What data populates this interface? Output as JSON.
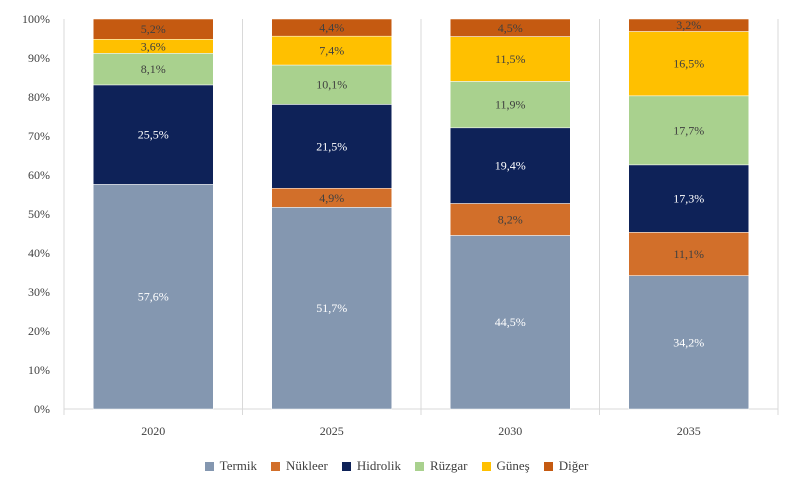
{
  "chart_data": {
    "type": "bar",
    "stacked": true,
    "categories": [
      "2020",
      "2025",
      "2030",
      "2035"
    ],
    "y_ticks": [
      "0%",
      "10%",
      "20%",
      "30%",
      "40%",
      "50%",
      "60%",
      "70%",
      "80%",
      "90%",
      "100%"
    ],
    "ylim": [
      0,
      100
    ],
    "grid": false,
    "legend_position": "bottom",
    "series": [
      {
        "name": "Termik",
        "color": "#8497b0",
        "label_color": "#ffffff",
        "values": [
          57.6,
          51.7,
          44.5,
          34.2
        ],
        "labels": [
          "57,6%",
          "51,7%",
          "44,5%",
          "34,2%"
        ]
      },
      {
        "name": "Nükleer",
        "color": "#d26f2a",
        "label_color": "#404040",
        "values": [
          0,
          4.9,
          8.2,
          11.1
        ],
        "labels": [
          "",
          "4,9%",
          "8,2%",
          "11,1%"
        ]
      },
      {
        "name": "Hidrolik",
        "color": "#0e2258",
        "label_color": "#ffffff",
        "values": [
          25.5,
          21.5,
          19.4,
          17.3
        ],
        "labels": [
          "25,5%",
          "21,5%",
          "19,4%",
          "17,3%"
        ]
      },
      {
        "name": "Rüzgar",
        "color": "#a9d18e",
        "label_color": "#404040",
        "values": [
          8.1,
          10.1,
          11.9,
          17.7
        ],
        "labels": [
          "8,1%",
          "10,1%",
          "11,9%",
          "17,7%"
        ]
      },
      {
        "name": "Güneş",
        "color": "#ffc000",
        "label_color": "#404040",
        "values": [
          3.6,
          7.4,
          11.5,
          16.5
        ],
        "labels": [
          "3,6%",
          "7,4%",
          "11,5%",
          "16,5%"
        ]
      },
      {
        "name": "Diğer",
        "color": "#c55a11",
        "label_color": "#404040",
        "values": [
          5.2,
          4.4,
          4.5,
          3.2
        ],
        "labels": [
          "5,2%",
          "4,4%",
          "4,5%",
          "3,2%"
        ]
      }
    ]
  }
}
